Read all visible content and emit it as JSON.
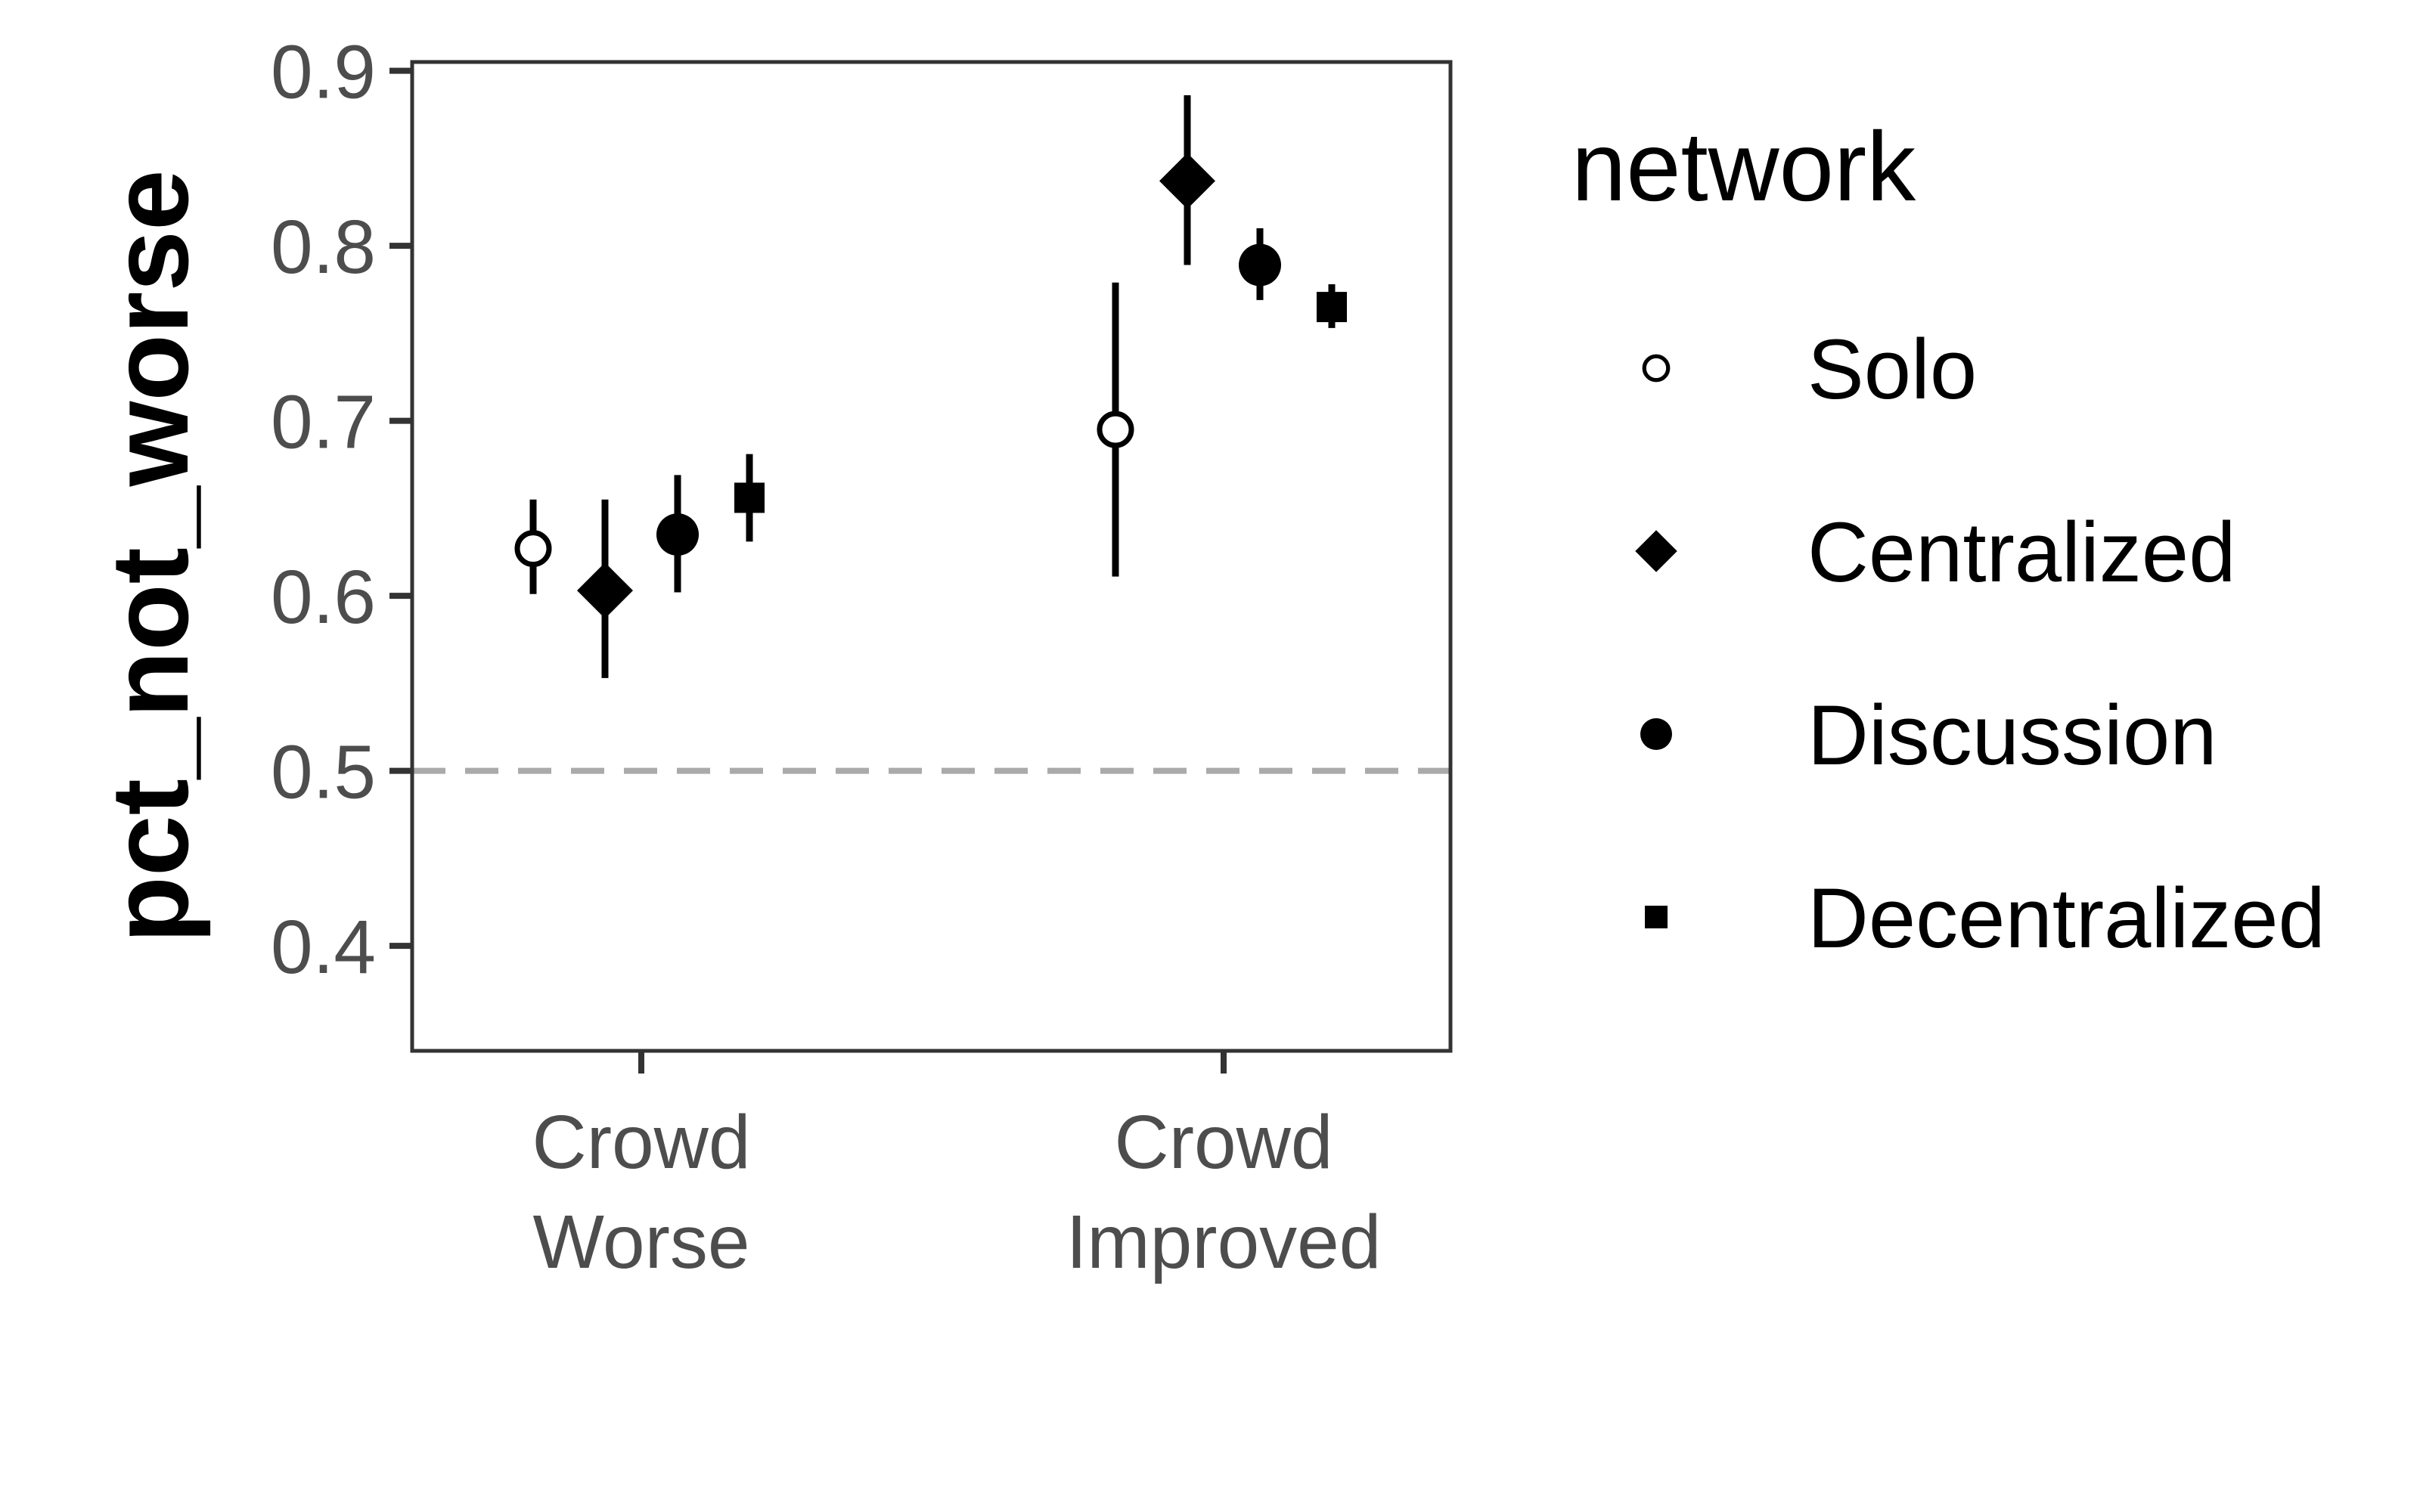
{
  "chart_data": {
    "type": "scatter",
    "ylabel": "pct_not_worse",
    "xlabel": "",
    "ylim": [
      0.34,
      0.905
    ],
    "yticks": [
      "0.4",
      "0.5",
      "0.6",
      "0.7",
      "0.8",
      "0.9"
    ],
    "categories": [
      [
        "Crowd",
        "Worse"
      ],
      [
        "Crowd",
        "Improved"
      ]
    ],
    "reference_line": {
      "y": 0.5,
      "style": "dashed",
      "color": "#aaaaaa"
    },
    "legend": {
      "title": "network",
      "position": "right"
    },
    "series": [
      {
        "name": "Solo",
        "marker": "open-circle",
        "points": [
          {
            "mean": 0.627,
            "low": 0.601,
            "high": 0.655
          },
          {
            "mean": 0.695,
            "low": 0.611,
            "high": 0.779
          }
        ]
      },
      {
        "name": "Centralized",
        "marker": "diamond",
        "points": [
          {
            "mean": 0.603,
            "low": 0.553,
            "high": 0.655
          },
          {
            "mean": 0.837,
            "low": 0.789,
            "high": 0.886
          }
        ]
      },
      {
        "name": "Discussion",
        "marker": "filled-circle",
        "points": [
          {
            "mean": 0.635,
            "low": 0.602,
            "high": 0.669
          },
          {
            "mean": 0.789,
            "low": 0.769,
            "high": 0.81
          }
        ]
      },
      {
        "name": "Decentralized",
        "marker": "square",
        "points": [
          {
            "mean": 0.656,
            "low": 0.631,
            "high": 0.681
          },
          {
            "mean": 0.765,
            "low": 0.753,
            "high": 0.778
          }
        ]
      }
    ]
  }
}
